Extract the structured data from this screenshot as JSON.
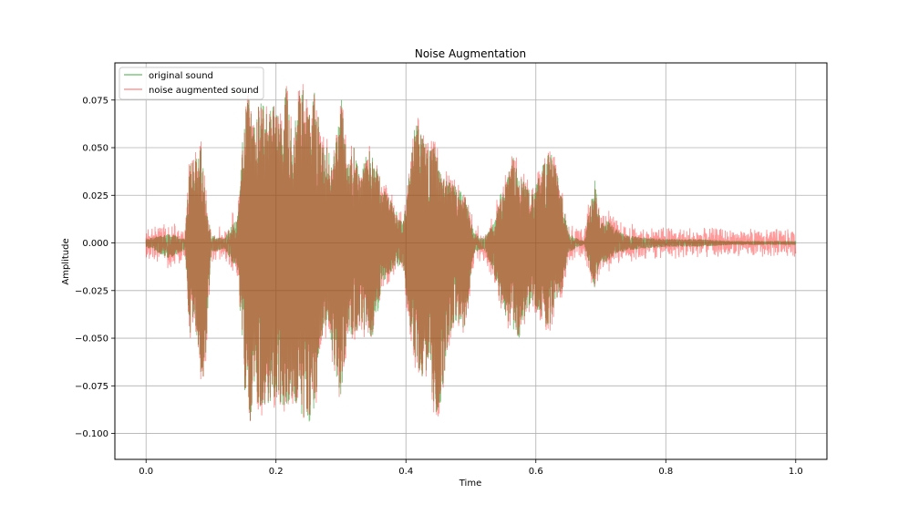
{
  "chart_data": {
    "type": "line",
    "title": "Noise Augmentation",
    "xlabel": "Time",
    "ylabel": "Amplitude",
    "xlim": [
      -0.048,
      1.048
    ],
    "ylim": [
      -0.1136,
      0.0945
    ],
    "x_ticks": [
      0.0,
      0.2,
      0.4,
      0.6,
      0.8,
      1.0
    ],
    "x_tick_labels": [
      "0.0",
      "0.2",
      "0.4",
      "0.6",
      "0.8",
      "1.0"
    ],
    "y_ticks": [
      -0.1,
      -0.075,
      -0.05,
      -0.025,
      0.0,
      0.025,
      0.05,
      0.075
    ],
    "y_tick_labels": [
      "−0.100",
      "−0.075",
      "−0.050",
      "−0.025",
      "0.000",
      "0.025",
      "0.050",
      "0.075"
    ],
    "grid": true,
    "legend_position": "top-left",
    "series": [
      {
        "name": "original sound",
        "color": "#2ca02c",
        "alpha": 0.6,
        "envelope": {
          "x": [
            0.0,
            0.035,
            0.06,
            0.068,
            0.075,
            0.085,
            0.09,
            0.1,
            0.12,
            0.142,
            0.15,
            0.158,
            0.165,
            0.175,
            0.185,
            0.2,
            0.21,
            0.215,
            0.225,
            0.24,
            0.25,
            0.26,
            0.27,
            0.28,
            0.29,
            0.3,
            0.31,
            0.32,
            0.33,
            0.34,
            0.35,
            0.365,
            0.38,
            0.395,
            0.405,
            0.415,
            0.425,
            0.435,
            0.445,
            0.455,
            0.465,
            0.475,
            0.49,
            0.505,
            0.52,
            0.535,
            0.545,
            0.555,
            0.565,
            0.575,
            0.585,
            0.595,
            0.61,
            0.62,
            0.63,
            0.64,
            0.65,
            0.665,
            0.675,
            0.69,
            0.695,
            0.7,
            0.71,
            0.72,
            0.74,
            0.76,
            0.8,
            0.85,
            0.9,
            0.95,
            1.0
          ],
          "upper": [
            0.002,
            0.005,
            0.002,
            0.045,
            0.042,
            0.05,
            0.03,
            0.004,
            0.002,
            0.015,
            0.065,
            0.076,
            0.06,
            0.074,
            0.07,
            0.072,
            0.058,
            0.082,
            0.055,
            0.085,
            0.065,
            0.08,
            0.05,
            0.05,
            0.045,
            0.078,
            0.04,
            0.05,
            0.032,
            0.05,
            0.045,
            0.028,
            0.02,
            0.01,
            0.035,
            0.065,
            0.055,
            0.048,
            0.05,
            0.035,
            0.032,
            0.03,
            0.025,
            0.005,
            0.002,
            0.01,
            0.025,
            0.032,
            0.045,
            0.035,
            0.03,
            0.025,
            0.04,
            0.05,
            0.04,
            0.025,
            0.005,
            0.002,
            0.001,
            0.035,
            0.02,
            0.01,
            0.012,
            0.008,
            0.004,
            0.003,
            0.002,
            0.002,
            0.001,
            0.001,
            0.001
          ],
          "lower": [
            -0.002,
            -0.008,
            -0.004,
            -0.05,
            -0.04,
            -0.07,
            -0.07,
            -0.005,
            -0.003,
            -0.015,
            -0.07,
            -0.1,
            -0.08,
            -0.085,
            -0.085,
            -0.08,
            -0.085,
            -0.085,
            -0.08,
            -0.09,
            -0.095,
            -0.085,
            -0.05,
            -0.04,
            -0.065,
            -0.08,
            -0.045,
            -0.05,
            -0.04,
            -0.05,
            -0.048,
            -0.02,
            -0.015,
            -0.01,
            -0.04,
            -0.062,
            -0.07,
            -0.065,
            -0.09,
            -0.082,
            -0.05,
            -0.04,
            -0.045,
            -0.005,
            -0.003,
            -0.015,
            -0.03,
            -0.04,
            -0.045,
            -0.05,
            -0.035,
            -0.03,
            -0.04,
            -0.045,
            -0.03,
            -0.025,
            -0.005,
            -0.002,
            -0.001,
            -0.024,
            -0.015,
            -0.01,
            -0.01,
            -0.006,
            -0.004,
            -0.003,
            -0.002,
            -0.002,
            -0.001,
            -0.001,
            -0.001
          ]
        }
      },
      {
        "name": "noise augmented sound",
        "color": "#ff0000",
        "alpha": 0.4,
        "noise_band": 0.0065
      }
    ]
  }
}
